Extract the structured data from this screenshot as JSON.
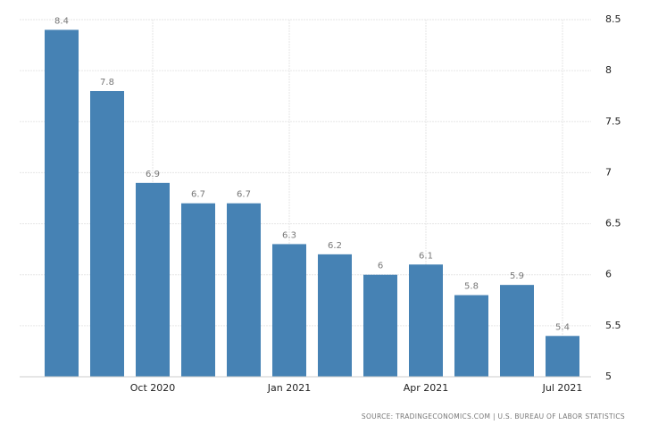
{
  "chart_data": {
    "type": "bar",
    "categories": [
      null,
      null,
      "Oct 2020",
      null,
      null,
      "Jan 2021",
      null,
      null,
      "Apr 2021",
      null,
      null,
      "Jul 2021"
    ],
    "values": [
      8.4,
      7.8,
      6.9,
      6.7,
      6.7,
      6.3,
      6.2,
      6,
      6.1,
      5.8,
      5.9,
      5.4
    ],
    "color": "#4682b4",
    "ylim": [
      5,
      8.5
    ],
    "yticks": [
      5,
      5.5,
      6,
      6.5,
      7,
      7.5,
      8,
      8.5
    ],
    "grid": true,
    "source": "SOURCE: TRADINGECONOMICS.COM | U.S. BUREAU OF LABOR STATISTICS"
  }
}
